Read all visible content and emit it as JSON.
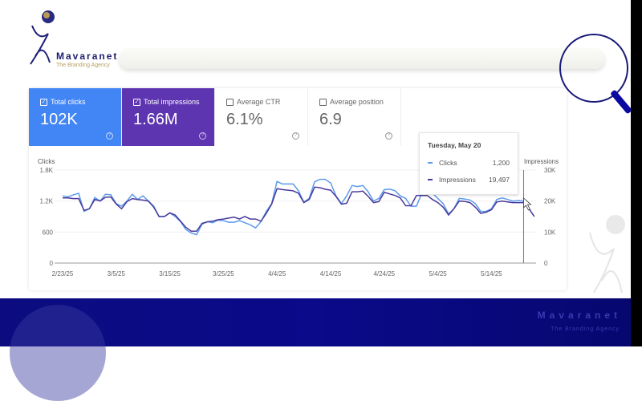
{
  "logo": {
    "brand": "Mavaranet",
    "tagline": "The Branding Agency"
  },
  "metrics": [
    {
      "label": "Total clicks",
      "value": "102K",
      "checked": true,
      "color": "#4285f4"
    },
    {
      "label": "Total impressions",
      "value": "1.66M",
      "checked": true,
      "color": "#5e35b1"
    },
    {
      "label": "Average CTR",
      "value": "6.1%",
      "checked": false
    },
    {
      "label": "Average position",
      "value": "6.9",
      "checked": false
    }
  ],
  "tooltip": {
    "date": "Tuesday, May 20",
    "clicks_label": "Clicks",
    "clicks_value": "1,200",
    "impressions_label": "Impressions",
    "impressions_value": "19,497"
  },
  "footer": {
    "brand": "Mavaranet",
    "tagline": "The Branding Agency"
  },
  "chart_data": {
    "type": "line",
    "left_axis": {
      "label": "Clicks",
      "ticks": [
        "0",
        "600",
        "1.2K",
        "1.8K"
      ],
      "range": [
        0,
        1800
      ]
    },
    "right_axis": {
      "label": "Impressions",
      "ticks": [
        "0",
        "10K",
        "20K",
        "30K"
      ],
      "range": [
        0,
        30000
      ]
    },
    "x_ticks": [
      {
        "label": "2/23/25",
        "day": 0
      },
      {
        "label": "3/5/25",
        "day": 10
      },
      {
        "label": "3/15/25",
        "day": 20
      },
      {
        "label": "3/25/25",
        "day": 30
      },
      {
        "label": "4/4/25",
        "day": 40
      },
      {
        "label": "4/14/25",
        "day": 50
      },
      {
        "label": "4/24/25",
        "day": 60
      },
      {
        "label": "5/4/25",
        "day": 70
      },
      {
        "label": "5/14/25",
        "day": 80
      }
    ],
    "cursor_day": 86,
    "series": [
      {
        "name": "Clicks",
        "color": "#5b9bec",
        "axis": "left",
        "values": [
          1300,
          1280,
          1320,
          1350,
          1000,
          1050,
          1270,
          1200,
          1330,
          1320,
          1150,
          1100,
          1200,
          1330,
          1230,
          1300,
          1200,
          1100,
          900,
          900,
          970,
          900,
          800,
          650,
          580,
          550,
          750,
          800,
          780,
          830,
          820,
          790,
          790,
          820,
          780,
          740,
          680,
          800,
          1000,
          1150,
          1580,
          1530,
          1530,
          1530,
          1400,
          1180,
          1250,
          1570,
          1620,
          1620,
          1550,
          1300,
          1150,
          1300,
          1500,
          1480,
          1500,
          1380,
          1200,
          1250,
          1420,
          1430,
          1400,
          1300,
          1250,
          1100,
          1100,
          1350,
          1380,
          1350,
          1250,
          1150,
          950,
          1050,
          1250,
          1240,
          1220,
          1150,
          1000,
          1000,
          1050,
          1230,
          1260,
          1230,
          1200,
          1210,
          1200,
          1050,
          900
        ]
      },
      {
        "name": "Impressions",
        "color": "#4a3a9c",
        "axis": "right",
        "values": [
          21000,
          21000,
          20800,
          20800,
          17000,
          17500,
          20500,
          20000,
          21200,
          21300,
          19000,
          17500,
          19800,
          20800,
          20500,
          20300,
          20000,
          18000,
          15000,
          15000,
          16200,
          15500,
          13500,
          11500,
          10300,
          10300,
          12800,
          13300,
          13500,
          14000,
          14200,
          14500,
          14800,
          14200,
          15000,
          14200,
          14200,
          13500,
          16000,
          19000,
          24000,
          23700,
          23500,
          23300,
          22500,
          19500,
          20500,
          24500,
          24300,
          23800,
          23500,
          21500,
          19000,
          19300,
          23000,
          23000,
          23200,
          21500,
          19500,
          19800,
          22800,
          22300,
          21800,
          21000,
          18500,
          18500,
          21800,
          21800,
          21800,
          20500,
          19500,
          18000,
          15500,
          17500,
          20000,
          19900,
          19500,
          18000,
          16000,
          16400,
          17200,
          19700,
          20000,
          19700,
          19497,
          19497,
          19497,
          17500,
          15000
        ]
      }
    ]
  }
}
